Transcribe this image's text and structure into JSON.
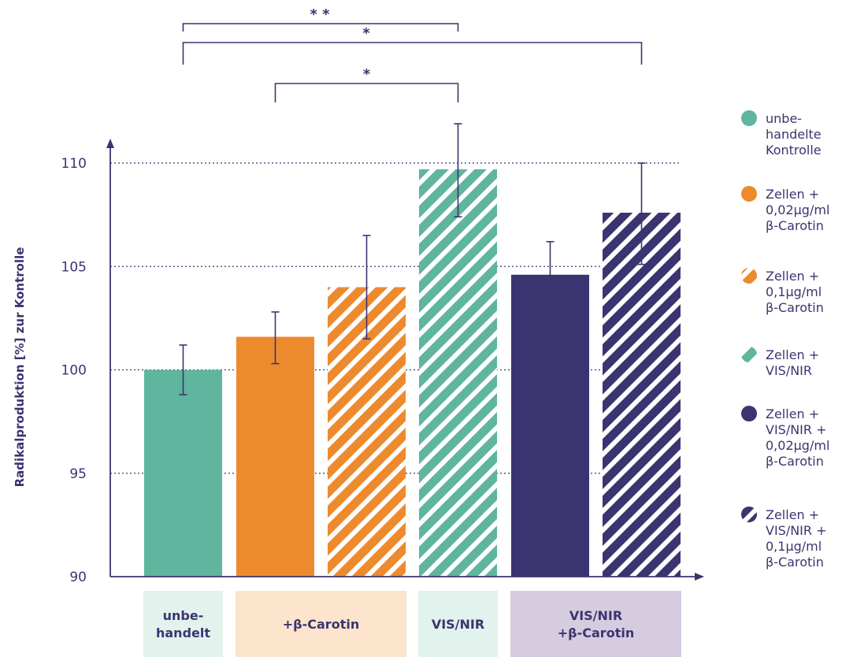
{
  "chart_data": {
    "type": "bar",
    "ylabel": "Radikalproduktion [%] zur Kontrolle",
    "ylim": [
      90,
      112
    ],
    "yticks": [
      90,
      95,
      100,
      105,
      110
    ],
    "grid": "dotted horizontal lines at 95, 100, 105, 110",
    "bars": [
      {
        "series": "unbehandelte Kontrolle",
        "value": 100.0,
        "err_low": 98.8,
        "err_high": 101.2,
        "color": "#5fb59d",
        "hatched": false
      },
      {
        "series": "Zellen + 0,02µg/ml β-Carotin",
        "value": 101.6,
        "err_low": 100.3,
        "err_high": 102.8,
        "color": "#ee8a2e",
        "hatched": false
      },
      {
        "series": "Zellen + 0,1µg/ml β-Carotin",
        "value": 104.0,
        "err_low": 101.5,
        "err_high": 106.5,
        "color": "#ee8a2e",
        "hatched": true
      },
      {
        "series": "Zellen + VIS/NIR",
        "value": 109.7,
        "err_low": 107.4,
        "err_high": 111.9,
        "color": "#5fb59d",
        "hatched": true
      },
      {
        "series": "Zellen + VIS/NIR + 0,02µg/ml β-Carotin",
        "value": 104.6,
        "err_low": 102.9,
        "err_high": 106.2,
        "color": "#3a3570",
        "hatched": false
      },
      {
        "series": "Zellen + VIS/NIR + 0,1µg/ml β-Carotin",
        "value": 107.6,
        "err_low": 105.1,
        "err_high": 110.0,
        "color": "#3a3570",
        "hatched": true
      }
    ],
    "groups": [
      {
        "label_lines": [
          "unbe-",
          "handelt"
        ],
        "bars": [
          0
        ],
        "bg": "#e2f2ec"
      },
      {
        "label_lines": [
          "+β-Carotin"
        ],
        "bars": [
          1,
          2
        ],
        "bg": "#fde4cd"
      },
      {
        "label_lines": [
          "VIS/NIR"
        ],
        "bars": [
          3
        ],
        "bg": "#e2f2ec"
      },
      {
        "label_lines": [
          "VIS/NIR",
          "+β-Carotin"
        ],
        "bars": [
          4,
          5
        ],
        "bg": "#d6cce0"
      }
    ],
    "significance": [
      {
        "from_bar": 0,
        "to_bar": 3,
        "label": "* *"
      },
      {
        "from_bar": 0,
        "to_bar": 5,
        "label": "*"
      },
      {
        "from_bar": 1,
        "to_bar": 3,
        "label": "*"
      }
    ],
    "legend": {
      "placement": "right",
      "items": [
        {
          "lines": [
            "unbe-",
            "handelte",
            "Kontrolle"
          ],
          "color": "#5fb59d",
          "hatched": false
        },
        {
          "lines": [
            "Zellen +",
            "0,02µg/ml",
            "β-Carotin"
          ],
          "color": "#ee8a2e",
          "hatched": false
        },
        {
          "lines": [
            "Zellen +",
            "0,1µg/ml",
            "β-Carotin"
          ],
          "color": "#ee8a2e",
          "hatched": true
        },
        {
          "lines": [
            "Zellen +",
            "VIS/NIR"
          ],
          "color": "#5fb59d",
          "hatched": true
        },
        {
          "lines": [
            "Zellen +",
            "VIS/NIR +",
            "0,02µg/ml",
            "β-Carotin"
          ],
          "color": "#3a3570",
          "hatched": false
        },
        {
          "lines": [
            "Zellen +",
            "VIS/NIR +",
            "0,1µg/ml",
            "β-Carotin"
          ],
          "color": "#3a3570",
          "hatched": true
        }
      ]
    },
    "axis_color": "#3a3570"
  }
}
